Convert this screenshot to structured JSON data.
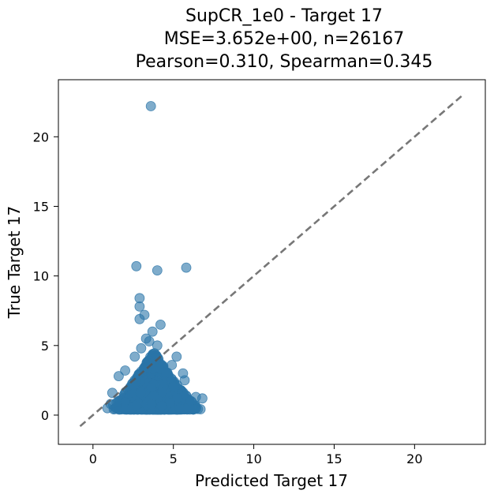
{
  "chart_data": {
    "type": "scatter",
    "title_lines": [
      "SupCR_1e0 - Target 17",
      "MSE=3.652e+00, n=26167",
      "Pearson=0.310, Spearman=0.345"
    ],
    "xlabel": "Predicted Target 17",
    "ylabel": "True Target 17",
    "xlim": [
      -2.15,
      24.4
    ],
    "ylim": [
      -2.1,
      24.1
    ],
    "x_ticks": [
      0,
      5,
      10,
      15,
      20
    ],
    "y_ticks": [
      0,
      5,
      10,
      15,
      20
    ],
    "x_tick_labels": [
      "0",
      "5",
      "10",
      "15",
      "20"
    ],
    "y_tick_labels": [
      "0",
      "5",
      "10",
      "15",
      "20"
    ],
    "grid": false,
    "point_color": "#2a74a8",
    "point_alpha": 0.6,
    "reference_line": {
      "from": [
        -0.8,
        -0.8
      ],
      "to": [
        23.1,
        23.1
      ],
      "style": "dashed",
      "color": "#555555"
    },
    "outlier_points": [
      [
        3.6,
        22.2
      ],
      [
        2.7,
        10.7
      ],
      [
        4.0,
        10.4
      ],
      [
        5.8,
        10.6
      ],
      [
        2.9,
        8.4
      ],
      [
        2.9,
        7.8
      ],
      [
        3.2,
        7.2
      ],
      [
        2.9,
        6.9
      ],
      [
        4.2,
        6.5
      ],
      [
        3.7,
        6.0
      ],
      [
        3.3,
        5.5
      ],
      [
        3.5,
        5.3
      ],
      [
        4.0,
        5.0
      ],
      [
        3.0,
        4.8
      ],
      [
        5.2,
        4.2
      ],
      [
        6.8,
        1.2
      ],
      [
        6.4,
        1.3
      ],
      [
        5.8,
        1.4
      ],
      [
        5.7,
        2.5
      ],
      [
        5.6,
        3.0
      ],
      [
        1.6,
        2.8
      ],
      [
        1.1,
        0.8
      ],
      [
        0.9,
        0.5
      ],
      [
        1.2,
        1.6
      ],
      [
        2.0,
        3.2
      ],
      [
        2.6,
        4.2
      ],
      [
        4.9,
        3.6
      ],
      [
        6.1,
        1.0
      ]
    ],
    "dense_cloud": {
      "n_rendered": 1700,
      "seed": 17,
      "x_range": [
        1.0,
        6.9
      ],
      "y_floor": 0.4,
      "apex": [
        3.8,
        4.6
      ]
    }
  }
}
